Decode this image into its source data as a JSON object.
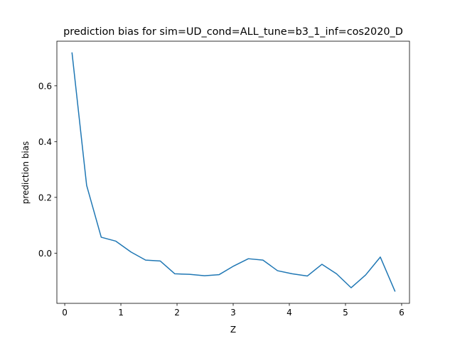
{
  "chart_data": {
    "type": "line",
    "title": "prediction bias for sim=UD_cond=ALL_tune=b3_1_inf=cos2020_D",
    "xlabel": "Z",
    "ylabel": "prediction bias",
    "xlim": [
      -0.14,
      6.14
    ],
    "ylim": [
      -0.18,
      0.76
    ],
    "xticks": [
      0,
      1,
      2,
      3,
      4,
      5,
      6
    ],
    "yticks": [
      0.0,
      0.2,
      0.4,
      0.6
    ],
    "xtick_labels": [
      "0",
      "1",
      "2",
      "3",
      "4",
      "5",
      "6"
    ],
    "ytick_labels": [
      "0.0",
      "0.2",
      "0.4",
      "0.6"
    ],
    "grid": false,
    "line_color": "#1f77b4",
    "series": [
      {
        "x": [
          0.13,
          0.39,
          0.65,
          0.91,
          1.18,
          1.44,
          1.7,
          1.96,
          2.22,
          2.49,
          2.75,
          3.01,
          3.27,
          3.53,
          3.79,
          4.05,
          4.32,
          4.58,
          4.84,
          5.1,
          5.36,
          5.62,
          5.88
        ],
        "y": [
          0.718,
          0.243,
          0.057,
          0.043,
          0.004,
          -0.025,
          -0.028,
          -0.074,
          -0.076,
          -0.081,
          -0.077,
          -0.046,
          -0.02,
          -0.025,
          -0.063,
          -0.074,
          -0.082,
          -0.04,
          -0.074,
          -0.124,
          -0.078,
          -0.014,
          -0.136
        ]
      }
    ]
  }
}
